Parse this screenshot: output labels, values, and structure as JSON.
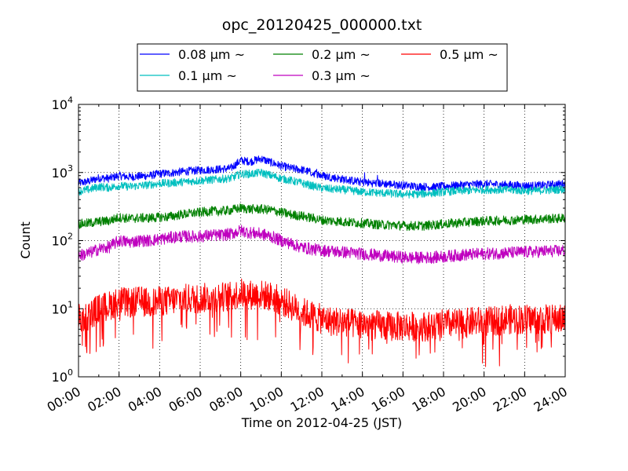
{
  "chart_data": {
    "type": "line",
    "title": "opc_20120425_000000.txt",
    "xlabel": "Time on 2012-04-25 (JST)",
    "ylabel": "Count",
    "yscale": "log",
    "ylim": [
      1,
      10000
    ],
    "xlim": [
      "00:00",
      "24:00"
    ],
    "grid": true,
    "legend_placement": "top-center",
    "x_ticks": [
      "00:00",
      "02:00",
      "04:00",
      "06:00",
      "08:00",
      "10:00",
      "12:00",
      "14:00",
      "16:00",
      "18:00",
      "20:00",
      "22:00",
      "24:00"
    ],
    "y_ticks": [
      {
        "base": "10",
        "exp": "0",
        "value": 1
      },
      {
        "base": "10",
        "exp": "1",
        "value": 10
      },
      {
        "base": "10",
        "exp": "2",
        "value": 100
      },
      {
        "base": "10",
        "exp": "3",
        "value": 1000
      },
      {
        "base": "10",
        "exp": "4",
        "value": 10000
      }
    ],
    "x_hours": [
      0,
      0.5,
      1,
      1.5,
      2,
      2.5,
      3,
      3.5,
      4,
      4.5,
      5,
      5.5,
      6,
      6.5,
      7,
      7.5,
      8,
      8.5,
      9,
      9.5,
      10,
      10.5,
      11,
      11.5,
      12,
      12.5,
      13,
      13.5,
      14,
      14.5,
      15,
      15.5,
      16,
      16.5,
      17,
      17.5,
      18,
      18.5,
      19,
      19.5,
      20,
      20.5,
      21,
      21.5,
      22,
      22.5,
      23,
      23.5,
      24
    ],
    "series": [
      {
        "name": "0.08 μm ~",
        "color": "#0000ff",
        "values": [
          700,
          740,
          830,
          820,
          900,
          860,
          880,
          900,
          960,
          980,
          1020,
          1050,
          1080,
          1100,
          1120,
          1150,
          1500,
          1450,
          1600,
          1400,
          1250,
          1150,
          1100,
          1000,
          900,
          850,
          800,
          760,
          720,
          700,
          690,
          670,
          650,
          630,
          620,
          610,
          630,
          640,
          660,
          670,
          680,
          670,
          660,
          650,
          640,
          640,
          650,
          670,
          680
        ]
      },
      {
        "name": "0.1 μm ~",
        "color": "#00bfbf",
        "values": [
          530,
          560,
          620,
          600,
          640,
          620,
          640,
          660,
          690,
          700,
          720,
          740,
          760,
          780,
          800,
          820,
          950,
          950,
          1000,
          900,
          820,
          760,
          700,
          640,
          590,
          570,
          560,
          540,
          520,
          510,
          500,
          490,
          480,
          480,
          490,
          500,
          520,
          530,
          540,
          550,
          560,
          560,
          560,
          550,
          540,
          540,
          550,
          560,
          570
        ]
      },
      {
        "name": "0.2 μm ~",
        "color": "#008000",
        "values": [
          175,
          180,
          190,
          195,
          220,
          210,
          215,
          215,
          220,
          225,
          240,
          250,
          260,
          270,
          270,
          280,
          300,
          290,
          290,
          280,
          260,
          240,
          230,
          215,
          200,
          195,
          190,
          185,
          180,
          175,
          170,
          170,
          165,
          165,
          165,
          170,
          175,
          180,
          185,
          190,
          195,
          195,
          200,
          200,
          205,
          205,
          210,
          210,
          215
        ]
      },
      {
        "name": "0.3 μm ~",
        "color": "#bf00bf",
        "values": [
          60,
          65,
          75,
          80,
          100,
          95,
          100,
          100,
          105,
          110,
          115,
          115,
          115,
          120,
          120,
          125,
          140,
          130,
          125,
          115,
          100,
          90,
          80,
          75,
          72,
          70,
          68,
          66,
          64,
          62,
          60,
          58,
          57,
          56,
          56,
          57,
          58,
          60,
          62,
          63,
          64,
          65,
          66,
          67,
          68,
          68,
          70,
          70,
          72
        ]
      },
      {
        "name": "0.5 μm ~",
        "color": "#ff0000",
        "values": [
          7,
          8,
          10,
          11,
          13,
          12,
          13,
          12,
          13,
          13,
          14,
          14,
          14,
          15,
          15,
          15,
          17,
          16,
          16,
          15,
          13,
          11,
          9,
          8,
          7,
          6.5,
          6.5,
          6,
          6,
          6,
          5.5,
          5.5,
          5.5,
          5.5,
          5.5,
          5.5,
          6,
          6,
          6,
          6.5,
          6.5,
          6.5,
          7,
          7,
          7,
          7,
          7,
          7,
          7
        ]
      }
    ]
  }
}
